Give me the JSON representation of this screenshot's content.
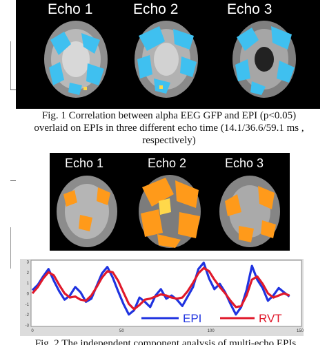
{
  "figure1": {
    "echo_labels": [
      "Echo 1",
      "Echo 2",
      "Echo 3"
    ],
    "overlay_color": "#3fc0f0",
    "highlight_color": "#ffd84a",
    "caption_lines": [
      "Fig. 1 Correlation between alpha EEG GFP and EPI (p<0.05)",
      "overlaid on EPIs in three different echo time (14.1/36.6/59.1 ms ,",
      "respectively)"
    ]
  },
  "figure2": {
    "echo_labels": [
      "Echo 1",
      "Echo 2",
      "Echo 3"
    ],
    "overlay_color": "#ff9a1a",
    "caption_partial": "Fig. 2 The independent component analysis of multi-echo EPIs"
  },
  "chart_data": {
    "type": "line",
    "xlim": [
      0,
      150
    ],
    "ylim": [
      -3,
      3
    ],
    "xticks": [
      "0",
      "50",
      "100",
      "150"
    ],
    "yticks": [
      "3",
      "2",
      "1",
      "0",
      "-1",
      "-2",
      "-3"
    ],
    "legend": {
      "placement": "bottom-center",
      "entries": [
        "EPI",
        "RVT"
      ]
    },
    "series": [
      {
        "name": "EPI",
        "color": "#1f33e0",
        "x": [
          0,
          3,
          6,
          9,
          12,
          15,
          18,
          21,
          24,
          27,
          30,
          33,
          36,
          39,
          42,
          45,
          48,
          51,
          54,
          57,
          60,
          63,
          66,
          69,
          72,
          75,
          78,
          81,
          84,
          87,
          90,
          93,
          96,
          99,
          102,
          105,
          108,
          111,
          114,
          117,
          120,
          123,
          126,
          129,
          132,
          135,
          138,
          141,
          144
        ],
        "values": [
          0.3,
          0.8,
          1.6,
          2.3,
          1.2,
          0.2,
          -0.6,
          -0.2,
          0.6,
          0.1,
          -0.8,
          -0.5,
          0.7,
          1.9,
          2.5,
          1.5,
          0.2,
          -1.0,
          -2.0,
          -1.6,
          -0.4,
          -0.8,
          -1.3,
          -0.2,
          0.4,
          -0.5,
          -0.2,
          -0.6,
          -1.2,
          -0.3,
          0.6,
          2.3,
          2.9,
          1.4,
          0.4,
          0.9,
          0.1,
          -1.0,
          -2.0,
          -1.3,
          0.3,
          2.6,
          1.3,
          0.5,
          -0.7,
          -0.2,
          0.5,
          0.1,
          -0.3
        ]
      },
      {
        "name": "RVT",
        "color": "#e0192b",
        "x": [
          0,
          3,
          6,
          9,
          12,
          15,
          18,
          21,
          24,
          27,
          30,
          33,
          36,
          39,
          42,
          45,
          48,
          51,
          54,
          57,
          60,
          63,
          66,
          69,
          72,
          75,
          78,
          81,
          84,
          87,
          90,
          93,
          96,
          99,
          102,
          105,
          108,
          111,
          114,
          117,
          120,
          123,
          126,
          129,
          132,
          135,
          138,
          141,
          144
        ],
        "values": [
          0.0,
          0.6,
          1.4,
          2.0,
          1.7,
          0.8,
          0.0,
          -0.4,
          -0.3,
          -0.6,
          -0.7,
          -0.2,
          0.6,
          1.5,
          2.1,
          2.0,
          1.2,
          0.1,
          -1.0,
          -1.5,
          -1.1,
          -0.6,
          -0.5,
          -0.3,
          -0.1,
          -0.2,
          -0.4,
          -0.5,
          -0.4,
          0.2,
          1.0,
          1.9,
          2.4,
          2.1,
          1.3,
          0.6,
          0.0,
          -0.7,
          -1.3,
          -1.2,
          -0.2,
          1.3,
          1.6,
          0.9,
          0.0,
          -0.4,
          -0.2,
          0.0,
          -0.2
        ]
      }
    ]
  }
}
